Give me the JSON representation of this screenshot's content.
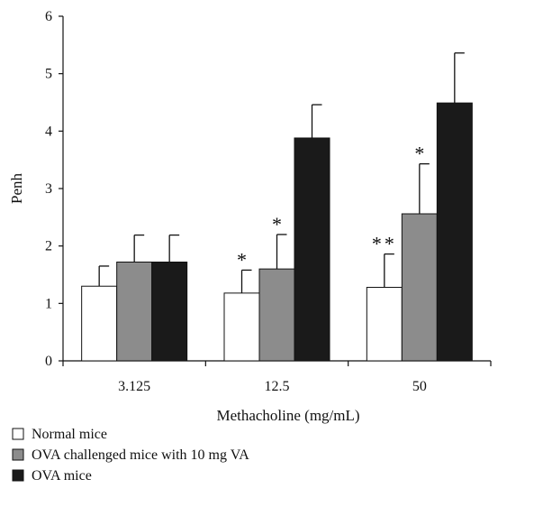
{
  "chart_data": {
    "type": "bar",
    "xlabel": "Methacholine (mg/mL)",
    "ylabel": "Penh",
    "ylim": [
      0,
      6
    ],
    "yticks": [
      0,
      1,
      2,
      3,
      4,
      5,
      6
    ],
    "grid": false,
    "legend_position": "bottom-left",
    "categories": [
      "3.125",
      "12.5",
      "50"
    ],
    "series": [
      {
        "name": "Normal mice",
        "color": "#ffffff",
        "values": [
          1.3,
          1.18,
          1.28
        ],
        "errors": [
          0.35,
          0.4,
          0.58
        ],
        "annotations": [
          "",
          "*",
          "**"
        ]
      },
      {
        "name": "OVA challenged mice with 10 mg VA",
        "color": "#8c8c8c",
        "values": [
          1.72,
          1.6,
          2.56
        ],
        "errors": [
          0.47,
          0.6,
          0.87
        ],
        "annotations": [
          "",
          "*",
          "*"
        ]
      },
      {
        "name": "OVA mice",
        "color": "#1a1a1a",
        "values": [
          1.72,
          3.88,
          4.49
        ],
        "errors": [
          0.47,
          0.58,
          0.87
        ],
        "annotations": [
          "",
          "",
          ""
        ]
      }
    ]
  }
}
